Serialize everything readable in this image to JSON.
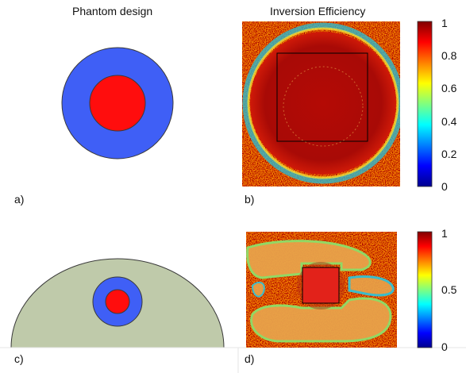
{
  "titles": {
    "left": "Phantom design",
    "right": "Inversion Efficiency"
  },
  "panel_labels": {
    "a": "a)",
    "b": "b)",
    "c": "c)",
    "d": "d)"
  },
  "colorbar_top": {
    "ticks": [
      "1",
      "0.8",
      "0.6",
      "0.4",
      "0.2",
      "0"
    ]
  },
  "colorbar_bottom": {
    "ticks": [
      "1",
      "0.5",
      "0"
    ]
  },
  "colors": {
    "phantom_outer": "#3f5ff6",
    "phantom_inner": "#ff0d0d",
    "body_fill": "#bfcaaa",
    "stroke": "#3a3a3a"
  }
}
